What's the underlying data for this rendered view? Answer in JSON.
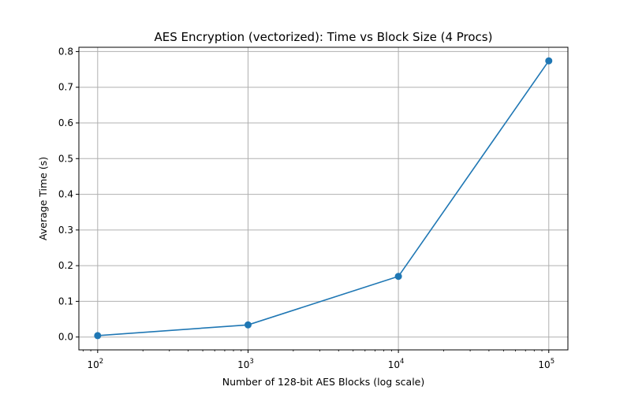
{
  "chart_data": {
    "type": "line",
    "title": "AES Encryption (vectorized): Time vs Block Size (4 Procs)",
    "xlabel": "Number of 128-bit AES Blocks (log scale)",
    "ylabel": "Average Time (s)",
    "x_scale": "log",
    "x_ticks": [
      100,
      1000,
      10000,
      100000
    ],
    "x_tick_labels": [
      {
        "base": "10",
        "exp": "2"
      },
      {
        "base": "10",
        "exp": "3"
      },
      {
        "base": "10",
        "exp": "4"
      },
      {
        "base": "10",
        "exp": "5"
      }
    ],
    "y_ticks": [
      0.0,
      0.1,
      0.2,
      0.3,
      0.4,
      0.5,
      0.6,
      0.7,
      0.8
    ],
    "y_tick_labels": [
      "0.0",
      "0.1",
      "0.2",
      "0.3",
      "0.4",
      "0.5",
      "0.6",
      "0.7",
      "0.8"
    ],
    "xlim": [
      75,
      134000
    ],
    "ylim": [
      -0.036,
      0.812
    ],
    "grid": true,
    "series": [
      {
        "color": "#1f77b4",
        "marker": "circle",
        "x": [
          100,
          1000,
          10000,
          100000
        ],
        "y": [
          0.004,
          0.034,
          0.17,
          0.774
        ]
      }
    ]
  }
}
